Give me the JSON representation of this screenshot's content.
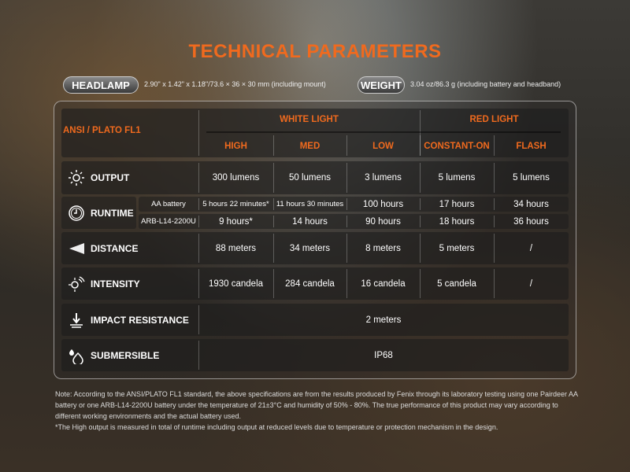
{
  "title": "TECHNICAL PARAMETERS",
  "headlamp": {
    "label": "HEADLAMP",
    "value": "2.90\" x 1.42\" x 1.18\"/73.6 × 36 × 30 mm (including mount)"
  },
  "weight": {
    "label": "WEIGHT",
    "value": "3.04 oz/86.3 g (including battery and headband)"
  },
  "table": {
    "standard": "ANSI / PLATO FL1",
    "groups": [
      "WHITE LIGHT",
      "RED LIGHT"
    ],
    "modes": [
      "HIGH",
      "MED",
      "LOW",
      "CONSTANT-ON",
      "FLASH"
    ],
    "output": {
      "label": "OUTPUT",
      "icon": "sun-icon",
      "values": [
        "300 lumens",
        "50 lumens",
        "3 lumens",
        "5 lumens",
        "5 lumens"
      ]
    },
    "runtime": {
      "label": "RUNTIME",
      "icon": "clock-icon",
      "rows": [
        {
          "battery": "AA battery",
          "values": [
            "5 hours 22 minutes*",
            "11 hours 30 minutes",
            "100 hours",
            "17 hours",
            "34 hours"
          ]
        },
        {
          "battery": "ARB-L14-2200U",
          "values": [
            "9 hours*",
            "14 hours",
            "90 hours",
            "18 hours",
            "36 hours"
          ]
        }
      ]
    },
    "distance": {
      "label": "DISTANCE",
      "icon": "beam-icon",
      "values": [
        "88 meters",
        "34 meters",
        "8 meters",
        "5 meters",
        "/"
      ]
    },
    "intensity": {
      "label": "INTENSITY",
      "icon": "intensity-icon",
      "values": [
        "1930 candela",
        "284 candela",
        "16 candela",
        "5 candela",
        "/"
      ]
    },
    "impact": {
      "label": "IMPACT RESISTANCE",
      "icon": "impact-icon",
      "value": "2 meters"
    },
    "submersible": {
      "label": "SUBMERSIBLE",
      "icon": "water-drops-icon",
      "value": "IP68"
    }
  },
  "note": [
    "Note: According to the ANSI/PLATO FL1 standard, the above specifications are from the results produced by Fenix through its laboratory testing using one Pairdeer AA battery or one ARB-L14-2200U battery under the temperature of 21±3°C and humidity of 50% - 80%. The true performance of this product may vary according to different working environments and the actual battery used.",
    "*The High output is measured in total of runtime including output at reduced levels due to temperature or protection mechanism in the design."
  ],
  "colors": {
    "accent": "#f06a1e"
  }
}
